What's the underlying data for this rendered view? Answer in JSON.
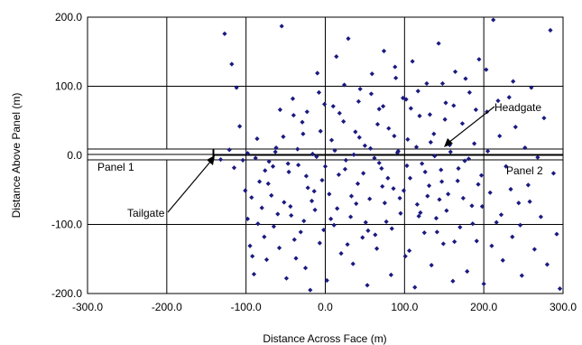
{
  "chart_data": {
    "type": "scatter",
    "title": "",
    "xlabel": "Distance Across Face (m)",
    "ylabel": "Distance Above Panel (m)",
    "xlim": [
      -300.0,
      300.0
    ],
    "ylim": [
      -200.0,
      200.0
    ],
    "x_ticks": [
      -300.0,
      -200.0,
      -100.0,
      0.0,
      100.0,
      200.0,
      300.0
    ],
    "y_ticks": [
      -200.0,
      -100.0,
      0.0,
      100.0,
      200.0
    ],
    "x_tick_labels": [
      "-300.0",
      "-200.0",
      "-100.0",
      "0.0",
      "100.0",
      "200.0",
      "300.0"
    ],
    "y_tick_labels": [
      "-200.0",
      "-100.0",
      "0.0",
      "100.0",
      "200.0"
    ],
    "grid": true,
    "marker_color": "#1a1a80",
    "series": [
      {
        "points": [
          [
            -127,
            176
          ],
          [
            -118,
            132
          ],
          [
            -112,
            98
          ],
          [
            -108,
            42
          ],
          [
            -104,
            -7
          ],
          [
            -101,
            -51
          ],
          [
            -98,
            -92
          ],
          [
            -95,
            -131
          ],
          [
            -92,
            -146
          ],
          [
            -90,
            -172
          ],
          [
            -86,
            24
          ],
          [
            -83,
            -38
          ],
          [
            -80,
            -76
          ],
          [
            -77,
            -118
          ],
          [
            -74,
            -151
          ],
          [
            -71,
            -9
          ],
          [
            -68,
            -58
          ],
          [
            -65,
            -103
          ],
          [
            -62,
            11
          ],
          [
            -58,
            -134
          ],
          [
            -55,
            187
          ],
          [
            -52,
            -68
          ],
          [
            -49,
            -178
          ],
          [
            -46,
            -24
          ],
          [
            -43,
            -87
          ],
          [
            -40,
            58
          ],
          [
            -37,
            -149
          ],
          [
            -34,
            -14
          ],
          [
            -31,
            -111
          ],
          [
            -28,
            31
          ],
          [
            -25,
            -163
          ],
          [
            -22,
            -47
          ],
          [
            -19,
            -195
          ],
          [
            -16,
            2
          ],
          [
            -13,
            -79
          ],
          [
            -10,
            119
          ],
          [
            -7,
            -127
          ],
          [
            -4,
            -36
          ],
          [
            -1,
            74
          ],
          [
            2,
            -181
          ],
          [
            5,
            -56
          ],
          [
            8,
            22
          ],
          [
            11,
            -101
          ],
          [
            14,
            143
          ],
          [
            17,
            -28
          ],
          [
            20,
            -142
          ],
          [
            23,
            49
          ],
          [
            26,
            -7
          ],
          [
            29,
            169
          ],
          [
            32,
            -89
          ],
          [
            35,
            -157
          ],
          [
            38,
            34
          ],
          [
            41,
            -41
          ],
          [
            44,
            96
          ],
          [
            47,
            -119
          ],
          [
            50,
            14
          ],
          [
            53,
            -188
          ],
          [
            56,
            -63
          ],
          [
            59,
            118
          ],
          [
            62,
            -4
          ],
          [
            65,
            -135
          ],
          [
            68,
            67
          ],
          [
            71,
            -19
          ],
          [
            74,
            151
          ],
          [
            77,
            -96
          ],
          [
            80,
            39
          ],
          [
            83,
            -173
          ],
          [
            86,
            -48
          ],
          [
            89,
            112
          ],
          [
            92,
            6
          ],
          [
            95,
            -84
          ],
          [
            98,
            83
          ],
          [
            101,
            -146
          ],
          [
            104,
            23
          ],
          [
            107,
            -33
          ],
          [
            110,
            136
          ],
          [
            113,
            -191
          ],
          [
            116,
            -71
          ],
          [
            119,
            57
          ],
          [
            122,
            -12
          ],
          [
            125,
            -112
          ],
          [
            128,
            104
          ],
          [
            131,
            -44
          ],
          [
            134,
            -159
          ],
          [
            137,
            31
          ],
          [
            140,
            -91
          ],
          [
            143,
            162
          ],
          [
            146,
            -21
          ],
          [
            149,
            -128
          ],
          [
            152,
            76
          ],
          [
            155,
            -56
          ],
          [
            158,
            5
          ],
          [
            161,
            -182
          ],
          [
            164,
            121
          ],
          [
            167,
            -37
          ],
          [
            170,
            -104
          ],
          [
            173,
            46
          ],
          [
            176,
            -8
          ],
          [
            179,
            -168
          ],
          [
            182,
            91
          ],
          [
            185,
            -73
          ],
          [
            188,
            17
          ],
          [
            191,
            -124
          ],
          [
            194,
            139
          ],
          [
            197,
            -29
          ],
          [
            200,
            -186
          ],
          [
            204,
            63
          ],
          [
            208,
            -54
          ],
          [
            212,
            196
          ],
          [
            216,
            -97
          ],
          [
            220,
            28
          ],
          [
            224,
            -152
          ],
          [
            228,
            -16
          ],
          [
            232,
            84
          ],
          [
            236,
            -118
          ],
          [
            240,
            41
          ],
          [
            244,
            -69
          ],
          [
            248,
            -174
          ],
          [
            252,
            11
          ],
          [
            256,
            -43
          ],
          [
            260,
            98
          ],
          [
            264,
            -136
          ],
          [
            268,
            -3
          ],
          [
            272,
            -89
          ],
          [
            276,
            54
          ],
          [
            280,
            -158
          ],
          [
            284,
            181
          ],
          [
            288,
            -26
          ],
          [
            292,
            -114
          ],
          [
            296,
            -193
          ],
          [
            -132,
            -6
          ],
          [
            -121,
            8
          ],
          [
            -115,
            -18
          ],
          [
            -98,
            3
          ],
          [
            -88,
            -4
          ],
          [
            -76,
            -22
          ],
          [
            -63,
            5
          ],
          [
            -47,
            -12
          ],
          [
            -35,
            9
          ],
          [
            -24,
            -30
          ],
          [
            -11,
            -2
          ],
          [
            0,
            -16
          ],
          [
            12,
            7
          ],
          [
            25,
            -20
          ],
          [
            36,
            1
          ],
          [
            48,
            -26
          ],
          [
            57,
            10
          ],
          [
            68,
            -11
          ],
          [
            79,
            -33
          ],
          [
            91,
            4
          ],
          [
            103,
            -15
          ],
          [
            115,
            12
          ],
          [
            126,
            -24
          ],
          [
            138,
            -1
          ],
          [
            147,
            -38
          ],
          [
            157,
            15
          ],
          [
            168,
            -19
          ],
          [
            181,
            -5
          ],
          [
            193,
            -42
          ],
          [
            205,
            6
          ],
          [
            -66,
            -16
          ],
          [
            -53,
            27
          ],
          [
            -44,
            -74
          ],
          [
            -29,
            48
          ],
          [
            -17,
            -66
          ],
          [
            -6,
            35
          ],
          [
            7,
            -92
          ],
          [
            18,
            61
          ],
          [
            33,
            -59
          ],
          [
            43,
            26
          ],
          [
            54,
            -109
          ],
          [
            66,
            45
          ],
          [
            75,
            -69
          ],
          [
            87,
            28
          ],
          [
            99,
            -51
          ],
          [
            108,
            68
          ],
          [
            120,
            -83
          ],
          [
            133,
            19
          ],
          [
            144,
            -64
          ],
          [
            151,
            52
          ],
          [
            -93,
            -61
          ],
          [
            -85,
            -99
          ],
          [
            -72,
            -41
          ],
          [
            -60,
            -85
          ],
          [
            -39,
            -122
          ],
          [
            -27,
            -95
          ],
          [
            -14,
            -52
          ],
          [
            -2,
            -108
          ],
          [
            15,
            -77
          ],
          [
            28,
            -129
          ],
          [
            39,
            -70
          ],
          [
            51,
            -97
          ],
          [
            63,
            -115
          ],
          [
            72,
            -45
          ],
          [
            84,
            -106
          ],
          [
            94,
            -62
          ],
          [
            106,
            -138
          ],
          [
            118,
            -88
          ],
          [
            129,
            -59
          ],
          [
            141,
            -111
          ],
          [
            153,
            -80
          ],
          [
            163,
            -125
          ],
          [
            174,
            -62
          ],
          [
            186,
            -99
          ],
          [
            198,
            -74
          ],
          [
            210,
            -131
          ],
          [
            222,
            -86
          ],
          [
            234,
            -49
          ],
          [
            246,
            -101
          ],
          [
            258,
            -67
          ],
          [
            -57,
            66
          ],
          [
            -41,
            82
          ],
          [
            -23,
            63
          ],
          [
            -8,
            91
          ],
          [
            10,
            71
          ],
          [
            24,
            102
          ],
          [
            42,
            78
          ],
          [
            58,
            89
          ],
          [
            73,
            71
          ],
          [
            88,
            128
          ],
          [
            102,
            81
          ],
          [
            117,
            93
          ],
          [
            132,
            59
          ],
          [
            148,
            104
          ],
          [
            162,
            72
          ],
          [
            177,
            111
          ],
          [
            190,
            66
          ],
          [
            203,
            124
          ],
          [
            218,
            79
          ],
          [
            237,
            107
          ]
        ]
      }
    ],
    "annotations": {
      "headgate": "Headgate",
      "tailgate": "Tailgate",
      "panel1": "Panel 1",
      "panel2": "Panel 2"
    }
  }
}
